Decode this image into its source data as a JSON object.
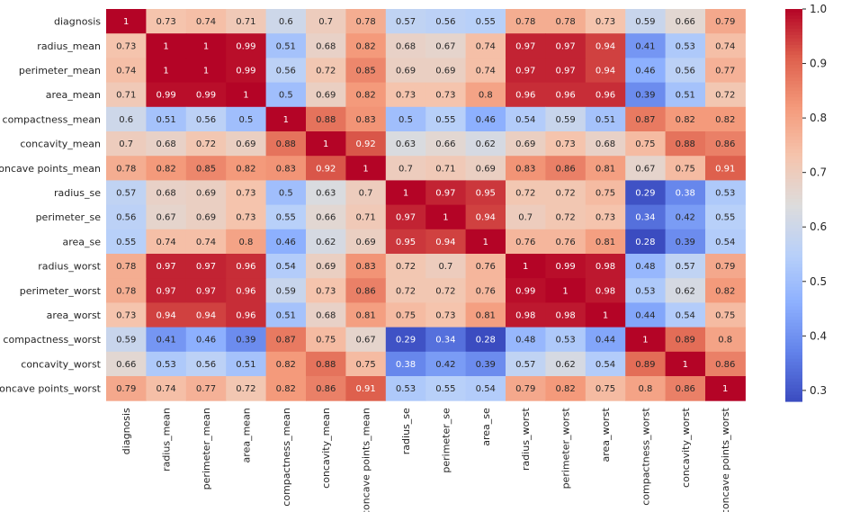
{
  "chart_data": {
    "type": "heatmap",
    "title": "",
    "xlabel": "",
    "ylabel": "",
    "labels": [
      "diagnosis",
      "radius_mean",
      "perimeter_mean",
      "area_mean",
      "compactness_mean",
      "concavity_mean",
      "concave points_mean",
      "radius_se",
      "perimeter_se",
      "area_se",
      "radius_worst",
      "perimeter_worst",
      "area_worst",
      "compactness_worst",
      "concavity_worst",
      "concave points_worst"
    ],
    "values": [
      [
        1,
        0.73,
        0.74,
        0.71,
        0.6,
        0.7,
        0.78,
        0.57,
        0.56,
        0.55,
        0.78,
        0.78,
        0.73,
        0.59,
        0.66,
        0.79
      ],
      [
        0.73,
        1,
        1,
        0.99,
        0.51,
        0.68,
        0.82,
        0.68,
        0.67,
        0.74,
        0.97,
        0.97,
        0.94,
        0.41,
        0.53,
        0.74
      ],
      [
        0.74,
        1,
        1,
        0.99,
        0.56,
        0.72,
        0.85,
        0.69,
        0.69,
        0.74,
        0.97,
        0.97,
        0.94,
        0.46,
        0.56,
        0.77
      ],
      [
        0.71,
        0.99,
        0.99,
        1,
        0.5,
        0.69,
        0.82,
        0.73,
        0.73,
        0.8,
        0.96,
        0.96,
        0.96,
        0.39,
        0.51,
        0.72
      ],
      [
        0.6,
        0.51,
        0.56,
        0.5,
        1,
        0.88,
        0.83,
        0.5,
        0.55,
        0.46,
        0.54,
        0.59,
        0.51,
        0.87,
        0.82,
        0.82
      ],
      [
        0.7,
        0.68,
        0.72,
        0.69,
        0.88,
        1,
        0.92,
        0.63,
        0.66,
        0.62,
        0.69,
        0.73,
        0.68,
        0.75,
        0.88,
        0.86
      ],
      [
        0.78,
        0.82,
        0.85,
        0.82,
        0.83,
        0.92,
        1,
        0.7,
        0.71,
        0.69,
        0.83,
        0.86,
        0.81,
        0.67,
        0.75,
        0.91
      ],
      [
        0.57,
        0.68,
        0.69,
        0.73,
        0.5,
        0.63,
        0.7,
        1,
        0.97,
        0.95,
        0.72,
        0.72,
        0.75,
        0.29,
        0.38,
        0.53
      ],
      [
        0.56,
        0.67,
        0.69,
        0.73,
        0.55,
        0.66,
        0.71,
        0.97,
        1,
        0.94,
        0.7,
        0.72,
        0.73,
        0.34,
        0.42,
        0.55
      ],
      [
        0.55,
        0.74,
        0.74,
        0.8,
        0.46,
        0.62,
        0.69,
        0.95,
        0.94,
        1,
        0.76,
        0.76,
        0.81,
        0.28,
        0.39,
        0.54
      ],
      [
        0.78,
        0.97,
        0.97,
        0.96,
        0.54,
        0.69,
        0.83,
        0.72,
        0.7,
        0.76,
        1,
        0.99,
        0.98,
        0.48,
        0.57,
        0.79
      ],
      [
        0.78,
        0.97,
        0.97,
        0.96,
        0.59,
        0.73,
        0.86,
        0.72,
        0.72,
        0.76,
        0.99,
        1,
        0.98,
        0.53,
        0.62,
        0.82
      ],
      [
        0.73,
        0.94,
        0.94,
        0.96,
        0.51,
        0.68,
        0.81,
        0.75,
        0.73,
        0.81,
        0.98,
        0.98,
        1,
        0.44,
        0.54,
        0.75
      ],
      [
        0.59,
        0.41,
        0.46,
        0.39,
        0.87,
        0.75,
        0.67,
        0.29,
        0.34,
        0.28,
        0.48,
        0.53,
        0.44,
        1,
        0.89,
        0.8
      ],
      [
        0.66,
        0.53,
        0.56,
        0.51,
        0.82,
        0.88,
        0.75,
        0.38,
        0.42,
        0.39,
        0.57,
        0.62,
        0.54,
        0.89,
        1,
        0.86
      ],
      [
        0.79,
        0.74,
        0.77,
        0.72,
        0.82,
        0.86,
        0.91,
        0.53,
        0.55,
        0.54,
        0.79,
        0.82,
        0.75,
        0.8,
        0.86,
        1
      ]
    ],
    "colormap": "coolwarm",
    "vmin": 0.28,
    "vmax": 1.0,
    "colorbar_ticks": [
      0.3,
      0.4,
      0.5,
      0.6,
      0.7,
      0.8,
      0.9,
      1.0
    ],
    "annotated": true
  }
}
